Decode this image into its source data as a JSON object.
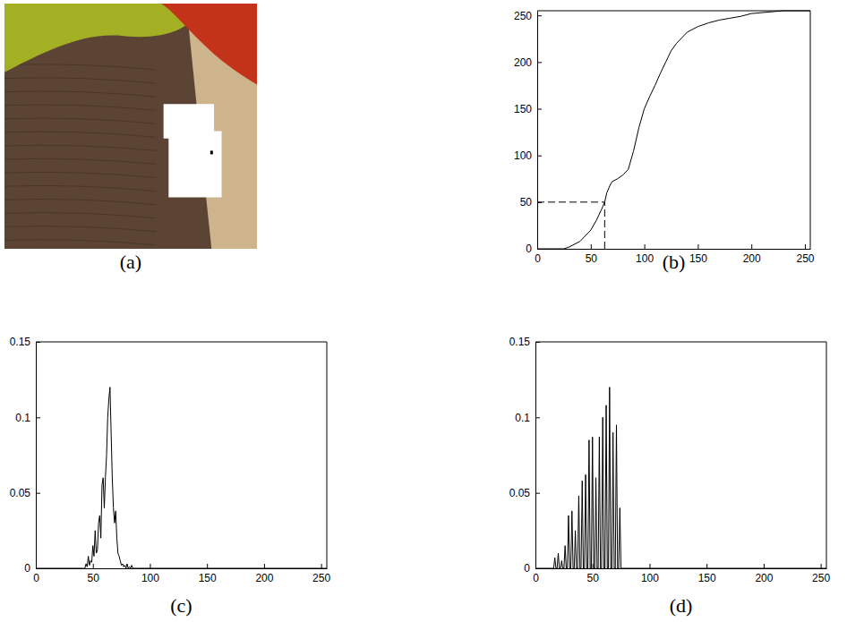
{
  "chart_data": [
    {
      "type": "image",
      "title": "(a)"
    },
    {
      "type": "line",
      "title": "(b)",
      "color": "#000000",
      "x": [
        0,
        25,
        30,
        40,
        50,
        55,
        60,
        63,
        65,
        68,
        70,
        75,
        80,
        85,
        90,
        95,
        100,
        105,
        110,
        115,
        120,
        125,
        130,
        135,
        140,
        150,
        160,
        170,
        180,
        190,
        200,
        210,
        220,
        230,
        255
      ],
      "values": [
        0,
        0,
        2,
        8,
        20,
        30,
        42,
        50,
        60,
        68,
        72,
        75,
        79,
        85,
        105,
        130,
        150,
        163,
        175,
        188,
        200,
        212,
        220,
        226,
        232,
        238,
        242,
        245,
        247,
        249,
        252,
        253,
        254,
        255,
        255
      ],
      "guide": {
        "x": 63,
        "y": 50
      },
      "xlim": [
        0,
        255
      ],
      "ylim": [
        0,
        255
      ],
      "xticks": [
        0,
        50,
        100,
        150,
        200,
        250
      ],
      "yticks": [
        0,
        50,
        100,
        150,
        200,
        250
      ]
    },
    {
      "type": "line",
      "title": "(c)",
      "color": "#000000",
      "x": [
        0,
        40,
        41,
        42,
        43,
        44,
        45,
        46,
        47,
        48,
        49,
        50,
        51,
        52,
        53,
        54,
        55,
        56,
        57,
        58,
        59,
        60,
        61,
        62,
        63,
        64,
        65,
        66,
        67,
        68,
        69,
        70,
        71,
        72,
        73,
        74,
        75,
        76,
        77,
        78,
        79,
        80,
        81,
        82,
        83,
        84,
        85,
        86,
        87,
        88,
        89,
        90,
        255
      ],
      "values": [
        0,
        0,
        0,
        0,
        0,
        0.003,
        0.001,
        0.008,
        0.002,
        0.005,
        0.004,
        0.015,
        0.008,
        0.025,
        0.01,
        0.012,
        0.03,
        0.035,
        0.02,
        0.055,
        0.06,
        0.04,
        0.06,
        0.075,
        0.1,
        0.112,
        0.12,
        0.09,
        0.06,
        0.04,
        0.03,
        0.038,
        0.02,
        0.01,
        0.008,
        0.005,
        0.002,
        0.003,
        0.001,
        0.002,
        0,
        0.003,
        0,
        0.001,
        0,
        0.002,
        0,
        0,
        0,
        0,
        0,
        0,
        0
      ],
      "xlim": [
        0,
        255
      ],
      "ylim": [
        0,
        0.15
      ],
      "xticks": [
        0,
        50,
        100,
        150,
        200,
        250
      ],
      "yticks": [
        0,
        0.05,
        0.1,
        0.15
      ]
    },
    {
      "type": "line",
      "title": "(d)",
      "color": "#000000",
      "x": [
        0,
        16,
        17,
        18,
        19,
        20,
        21,
        22,
        23,
        24,
        25,
        26,
        27,
        28,
        29,
        30,
        31,
        32,
        33,
        34,
        35,
        36,
        37,
        38,
        39,
        40,
        41,
        42,
        43,
        44,
        45,
        46,
        47,
        48,
        49,
        50,
        51,
        52,
        53,
        54,
        55,
        56,
        57,
        58,
        59,
        60,
        61,
        62,
        63,
        64,
        65,
        66,
        67,
        68,
        69,
        70,
        71,
        72,
        73,
        74,
        75,
        255
      ],
      "values": [
        0,
        0,
        0.007,
        0,
        0,
        0.01,
        0,
        0,
        0.005,
        0,
        0,
        0.015,
        0,
        0,
        0.035,
        0,
        0,
        0.038,
        0,
        0,
        0.025,
        0,
        0,
        0.048,
        0,
        0,
        0.058,
        0,
        0,
        0.062,
        0,
        0,
        0.085,
        0,
        0,
        0.087,
        0,
        0,
        0.06,
        0,
        0,
        0.087,
        0,
        0,
        0.1,
        0,
        0,
        0.108,
        0,
        0,
        0.12,
        0,
        0,
        0.09,
        0,
        0,
        0.095,
        0,
        0,
        0.04,
        0,
        0
      ],
      "xlim": [
        0,
        255
      ],
      "ylim": [
        0,
        0.15
      ],
      "xticks": [
        0,
        50,
        100,
        150,
        200,
        250
      ],
      "yticks": [
        0,
        0.05,
        0.1,
        0.15
      ]
    }
  ]
}
